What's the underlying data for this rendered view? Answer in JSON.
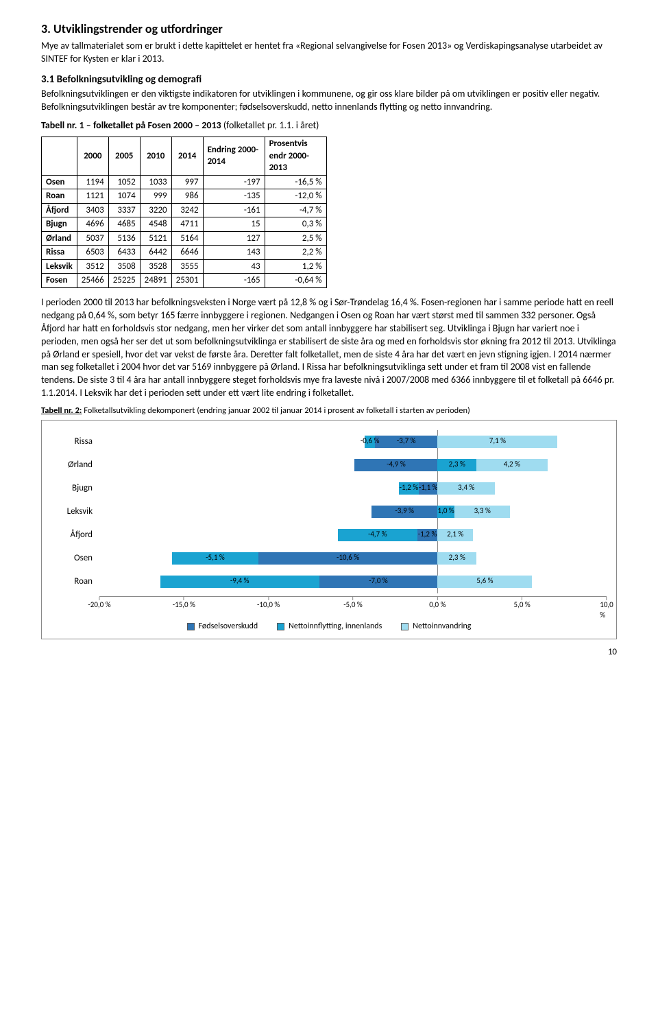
{
  "heading": "3. Utviklingstrender og utfordringer",
  "intro": "Mye av tallmaterialet som er brukt i dette kapittelet er hentet fra «Regional selvangivelse for Fosen 2013» og Verdiskapingsanalyse utarbeidet av SINTEF for Kysten er klar i 2013.",
  "sub_heading": "3.1 Befolkningsutvikling og demografi",
  "sub_body": "Befolkningsutviklingen er den viktigste indikatoren for utviklingen i kommunene, og gir oss klare bilder på om utviklingen er positiv eller negativ. Befolkningsutviklingen består av tre komponenter; fødselsoverskudd, netto innenlands flytting og netto innvandring.",
  "table1_caption_lead": "Tabell nr. 1 – folketallet på Fosen 2000 – 2013 ",
  "table1_caption_tail": "(folketallet pr. 1.1. i året)",
  "table1": {
    "columns": [
      "",
      "2000",
      "2005",
      "2010",
      "2014",
      "Endring 2000-2014",
      "Prosentvis endr 2000-2013"
    ],
    "rows": [
      [
        "Osen",
        "1194",
        "1052",
        "1033",
        "997",
        "-197",
        "-16,5 %"
      ],
      [
        "Roan",
        "1121",
        "1074",
        "999",
        "986",
        "-135",
        "-12,0 %"
      ],
      [
        "Åfjord",
        "3403",
        "3337",
        "3220",
        "3242",
        "-161",
        "-4,7 %"
      ],
      [
        "Bjugn",
        "4696",
        "4685",
        "4548",
        "4711",
        "15",
        "0,3 %"
      ],
      [
        "Ørland",
        "5037",
        "5136",
        "5121",
        "5164",
        "127",
        "2,5 %"
      ],
      [
        "Rissa",
        "6503",
        "6433",
        "6442",
        "6646",
        "143",
        "2,2 %"
      ],
      [
        "Leksvik",
        "3512",
        "3508",
        "3528",
        "3555",
        "43",
        "1,2 %"
      ],
      [
        "Fosen",
        "25466",
        "25225",
        "24891",
        "25301",
        "-165",
        "-0,64 %"
      ]
    ]
  },
  "mid_para": "I perioden 2000 til 2013 har befolkningsveksten i Norge vært på 12,8 % og i Sør-Trøndelag 16,4 %. Fosen-regionen har i samme periode hatt en reell nedgang på 0,64 %, som betyr 165 færre innbyggere i regionen. Nedgangen i Osen og Roan har vært størst med til sammen 332 personer. Også Åfjord har hatt en forholdsvis stor nedgang, men her virker det som antall innbyggere har stabilisert seg. Utviklinga i Bjugn har variert noe i perioden, men også her ser det ut som befolkningsutviklinga er stabilisert de siste åra og med en forholdsvis stor økning fra 2012 til 2013. Utviklinga på Ørland er spesiell, hvor det var vekst de første åra. Deretter falt folketallet, men de siste 4 åra har det vært en jevn stigning igjen. I 2014 nærmer man seg folketallet i 2004 hvor det var 5169 innbyggere på Ørland. I Rissa har befolkningsutviklinga sett under et fram til 2008 vist en fallende tendens. De siste 3 til 4 åra har antall innbyggere steget forholdsvis mye fra laveste nivå i 2007/2008 med 6366 innbyggere til et folketall på 6646 pr. 1.1.2014. I Leksvik har det i perioden sett under ett vært lite endring i folketallet.",
  "table2_caption_lead": "Tabell nr. 2:",
  "table2_caption_tail": " Folketallsutvikling dekomponert (endring januar 2002 til januar 2014 i prosent av folketall i starten av perioden)",
  "chart": {
    "xmin": -20.0,
    "xmax": 10.0,
    "xtick_step": 5.0,
    "xticks": [
      "-20,0 %",
      "-15,0 %",
      "-10,0 %",
      "-5,0 %",
      "0,0 %",
      "5,0 %",
      "10,0 %"
    ],
    "series_colors": {
      "fodsel": "#2f75b5",
      "innflytt": "#1aa3d1",
      "innvand": "#9fdcf0"
    },
    "rows": [
      {
        "label": "Rissa",
        "fodsel": -3.7,
        "innflytt": -0.6,
        "innvand": 7.1,
        "fodsel_txt": "-3,7 %",
        "innflytt_txt": "-0,6 %",
        "innvand_txt": "7,1 %"
      },
      {
        "label": "Ørland",
        "fodsel": -4.9,
        "innflytt": 2.3,
        "innvand": 4.2,
        "fodsel_txt": "-4,9 %",
        "innflytt_txt": "2,3 %",
        "innvand_txt": "4,2 %"
      },
      {
        "label": "Bjugn",
        "fodsel": -1.1,
        "innflytt": -1.2,
        "innvand": 3.4,
        "fodsel_txt": "-1,1 %",
        "innflytt_txt": "-1,2 %",
        "innvand_txt": "3,4 %"
      },
      {
        "label": "Leksvik",
        "fodsel": -3.9,
        "innflytt": 1.0,
        "innvand": 3.3,
        "fodsel_txt": "-3,9 %",
        "innflytt_txt": "1,0 %",
        "innvand_txt": "3,3 %"
      },
      {
        "label": "Åfjord",
        "fodsel": -1.2,
        "innflytt": -4.7,
        "innvand": 2.1,
        "fodsel_txt": "-1,2 %",
        "innflytt_txt": "-4,7 %",
        "innvand_txt": "2,1 %"
      },
      {
        "label": "Osen",
        "fodsel": -10.6,
        "innflytt": -5.1,
        "innvand": 2.3,
        "fodsel_txt": "-10,6 %",
        "innflytt_txt": "-5,1 %",
        "innvand_txt": "2,3 %"
      },
      {
        "label": "Roan",
        "fodsel": -7.0,
        "innflytt": -9.4,
        "innvand": 5.6,
        "fodsel_txt": "-7,0 %",
        "innflytt_txt": "-9,4 %",
        "innvand_txt": "5,6 %"
      }
    ],
    "legend": {
      "fodsel": "Fødselsoverskudd",
      "innflytt": "Nettoinnflytting, innenlands",
      "innvand": "Nettoinnvandring"
    }
  },
  "page_number": "10"
}
